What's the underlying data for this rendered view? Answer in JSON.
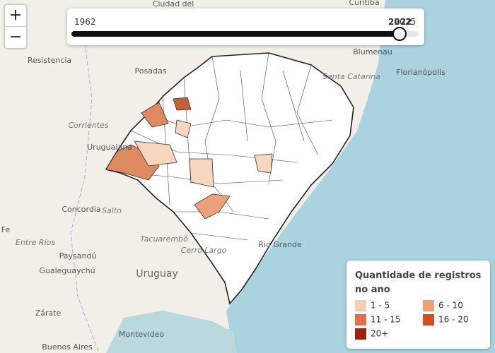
{
  "zoom": {
    "in": "+",
    "out": "−"
  },
  "slider": {
    "min": 1962,
    "value": 2022,
    "max": 2025
  },
  "places": [
    "Ciudad del",
    "Curitiba",
    "Resistencia",
    "Posadas",
    "Blumenau",
    "Florianópolis",
    "Santa Catarina",
    "Corrientes",
    "Uruguaiana",
    "Concordia",
    "Salto",
    "Fe",
    "Entre Ríos",
    "Paysandú",
    "Tacuarembó",
    "Cerro Largo",
    "Gualeguaychú",
    "Uruguay",
    "Zárate",
    "Montevideo",
    "Buenos Aires",
    "Rio Grande"
  ],
  "legend": {
    "title": "Quantidade de registros no ano",
    "items": [
      {
        "label": "1 - 5",
        "color": "#f6cdb0"
      },
      {
        "label": "6 - 10",
        "color": "#ee9f73"
      },
      {
        "label": "11 - 15",
        "color": "#df7247"
      },
      {
        "label": "16 - 20",
        "color": "#d34f20"
      },
      {
        "label": "20+",
        "color": "#9a2410"
      }
    ]
  }
}
